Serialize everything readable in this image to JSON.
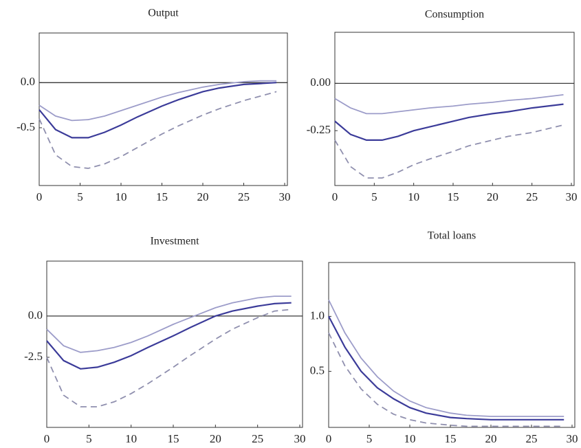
{
  "chart_data": [
    {
      "type": "line",
      "title": "Output",
      "x": [
        0,
        2,
        4,
        6,
        8,
        10,
        12,
        15,
        17,
        20,
        22,
        25,
        27,
        29
      ],
      "xlim": [
        0,
        30
      ],
      "xticks": [
        0,
        5,
        10,
        15,
        20,
        25,
        30
      ],
      "ylim": [
        -1.14,
        0.55
      ],
      "yticks": [
        {
          "value": 0,
          "label": "0.0"
        },
        -0.5
      ],
      "zero_line": 0,
      "series": [
        {
          "color": "#3b3b99",
          "dash": false,
          "values": [
            -0.3,
            -0.52,
            -0.61,
            -0.61,
            -0.55,
            -0.47,
            -0.38,
            -0.26,
            -0.19,
            -0.1,
            -0.06,
            -0.02,
            -0.01,
            0
          ]
        },
        {
          "color": "#9c9cc9",
          "dash": false,
          "values": [
            -0.25,
            -0.37,
            -0.42,
            -0.41,
            -0.37,
            -0.31,
            -0.25,
            -0.16,
            -0.11,
            -0.05,
            -0.02,
            0.01,
            0.02,
            0.02
          ]
        },
        {
          "color": "#8f8fae",
          "dash": true,
          "values": [
            -0.4,
            -0.8,
            -0.93,
            -0.95,
            -0.9,
            -0.82,
            -0.72,
            -0.57,
            -0.48,
            -0.36,
            -0.29,
            -0.2,
            -0.15,
            -0.1
          ]
        }
      ]
    },
    {
      "type": "line",
      "title": "Consumption",
      "x": [
        0,
        2,
        4,
        6,
        8,
        10,
        12,
        15,
        17,
        20,
        22,
        25,
        27,
        29
      ],
      "xlim": [
        0,
        30
      ],
      "xticks": [
        0,
        5,
        10,
        15,
        20,
        25,
        30
      ],
      "ylim": [
        -0.54,
        0.27
      ],
      "yticks": [
        {
          "value": 0,
          "label": "0.00"
        },
        -0.25
      ],
      "zero_line": 0,
      "series": [
        {
          "color": "#3b3b99",
          "dash": false,
          "values": [
            -0.2,
            -0.27,
            -0.3,
            -0.3,
            -0.28,
            -0.25,
            -0.23,
            -0.2,
            -0.18,
            -0.16,
            -0.15,
            -0.13,
            -0.12,
            -0.11
          ]
        },
        {
          "color": "#9c9cc9",
          "dash": false,
          "values": [
            -0.08,
            -0.13,
            -0.16,
            -0.16,
            -0.15,
            -0.14,
            -0.13,
            -0.12,
            -0.11,
            -0.1,
            -0.09,
            -0.08,
            -0.07,
            -0.06
          ]
        },
        {
          "color": "#8f8fae",
          "dash": true,
          "values": [
            -0.3,
            -0.44,
            -0.5,
            -0.5,
            -0.47,
            -0.43,
            -0.4,
            -0.36,
            -0.33,
            -0.3,
            -0.28,
            -0.26,
            -0.24,
            -0.22
          ]
        }
      ]
    },
    {
      "type": "line",
      "title": "Investment",
      "x": [
        0,
        2,
        4,
        6,
        8,
        10,
        12,
        15,
        17,
        20,
        22,
        25,
        27,
        29
      ],
      "xlim": [
        0,
        30
      ],
      "xticks": [
        0,
        5,
        10,
        15,
        20,
        25,
        30
      ],
      "ylim": [
        -6.75,
        3.33
      ],
      "yticks": [
        {
          "value": 0,
          "label": "0.0"
        },
        -2.5
      ],
      "zero_line": 0,
      "series": [
        {
          "color": "#3b3b99",
          "dash": false,
          "values": [
            -1.5,
            -2.7,
            -3.2,
            -3.1,
            -2.8,
            -2.4,
            -1.9,
            -1.2,
            -0.7,
            0,
            0.3,
            0.6,
            0.75,
            0.8
          ]
        },
        {
          "color": "#9c9cc9",
          "dash": false,
          "values": [
            -0.8,
            -1.8,
            -2.2,
            -2.1,
            -1.9,
            -1.6,
            -1.2,
            -0.5,
            -0.1,
            0.5,
            0.8,
            1.1,
            1.2,
            1.2
          ]
        },
        {
          "color": "#8f8fae",
          "dash": true,
          "values": [
            -2.5,
            -4.8,
            -5.5,
            -5.5,
            -5.2,
            -4.7,
            -4.1,
            -3.1,
            -2.4,
            -1.4,
            -0.8,
            -0.1,
            0.3,
            0.4
          ]
        }
      ]
    },
    {
      "type": "line",
      "title": "Total loans",
      "x": [
        0,
        2,
        4,
        6,
        8,
        10,
        12,
        15,
        17,
        20,
        22,
        25,
        27,
        29
      ],
      "xlim": [
        0,
        30
      ],
      "xticks": [
        0,
        5,
        10,
        15,
        20,
        25,
        30
      ],
      "ylim": [
        -0.01,
        1.49
      ],
      "yticks": [
        {
          "value": 1,
          "label": "1.0"
        },
        0.5
      ],
      "series": [
        {
          "color": "#3b3b99",
          "dash": false,
          "values": [
            1.0,
            0.72,
            0.5,
            0.35,
            0.25,
            0.17,
            0.12,
            0.08,
            0.07,
            0.06,
            0.06,
            0.06,
            0.06,
            0.06
          ]
        },
        {
          "color": "#9c9cc9",
          "dash": false,
          "values": [
            1.15,
            0.85,
            0.62,
            0.45,
            0.32,
            0.23,
            0.17,
            0.12,
            0.1,
            0.09,
            0.09,
            0.09,
            0.09,
            0.09
          ]
        },
        {
          "color": "#8f8fae",
          "dash": true,
          "values": [
            0.85,
            0.55,
            0.34,
            0.2,
            0.11,
            0.06,
            0.03,
            0.01,
            0,
            0,
            0,
            0,
            0,
            0
          ]
        }
      ]
    }
  ]
}
